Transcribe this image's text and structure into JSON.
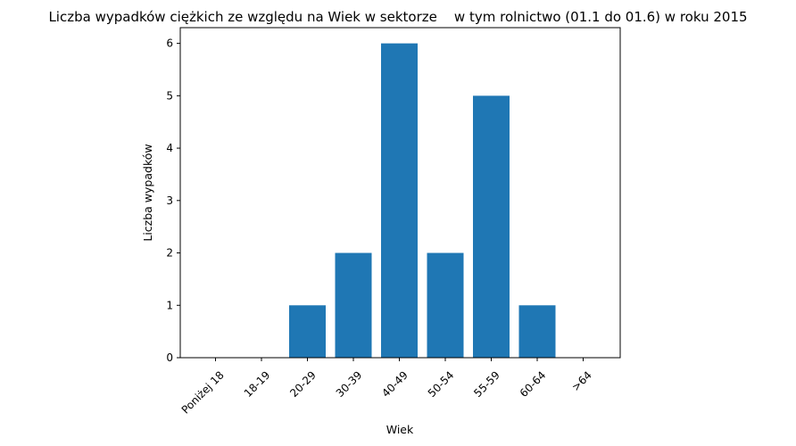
{
  "chart_data": {
    "type": "bar",
    "title": "Liczba wypadków ciężkich ze względu na Wiek w sektorze    w tym rolnictwo (01.1 do 01.6) w roku 2015",
    "xlabel": "Wiek",
    "ylabel": "Liczba wypadków",
    "categories": [
      "Poniżej 18",
      "18-19",
      "20-29",
      "30-39",
      "40-49",
      "50-54",
      "55-59",
      "60-64",
      ">64"
    ],
    "values": [
      0,
      0,
      1,
      2,
      6,
      2,
      5,
      1,
      0
    ],
    "ylim": [
      0,
      6.3
    ],
    "yticks": [
      0,
      1,
      2,
      3,
      4,
      5,
      6
    ],
    "bar_color": "#1f77b4",
    "grid": false,
    "legend": "none"
  }
}
